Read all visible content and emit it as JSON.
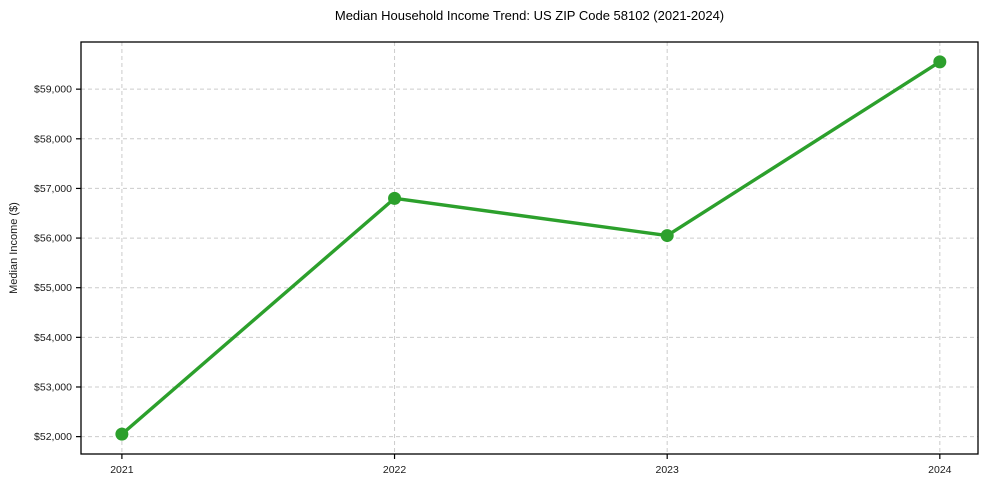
{
  "chart_data": {
    "type": "line",
    "title": "Median Household Income Trend: US ZIP Code 58102 (2021-2024)",
    "xlabel": "",
    "ylabel": "Median Income ($)",
    "x": [
      2021,
      2022,
      2023,
      2024
    ],
    "x_tick_labels": [
      "2021",
      "2022",
      "2023",
      "2024"
    ],
    "y_ticks": [
      52000,
      53000,
      54000,
      55000,
      56000,
      57000,
      58000,
      59000
    ],
    "y_tick_labels": [
      "$52,000",
      "$53,000",
      "$54,000",
      "$55,000",
      "$56,000",
      "$57,000",
      "$58,000",
      "$59,000"
    ],
    "xlim": [
      2020.85,
      2024.14
    ],
    "ylim": [
      51650,
      59950
    ],
    "grid": true,
    "grid_color": "#cccccc",
    "grid_dash": "4 3",
    "legend_position": "none",
    "axis_color": "#000000",
    "tick_label_color": "#1a1a1a",
    "background_color": "#ffffff",
    "series": [
      {
        "name": "Median Household Income",
        "values": [
          52050,
          56800,
          56050,
          59550
        ],
        "color": "#2ca02c",
        "marker": "circle",
        "marker_size": 6.5,
        "line_width": 3.4
      }
    ]
  }
}
